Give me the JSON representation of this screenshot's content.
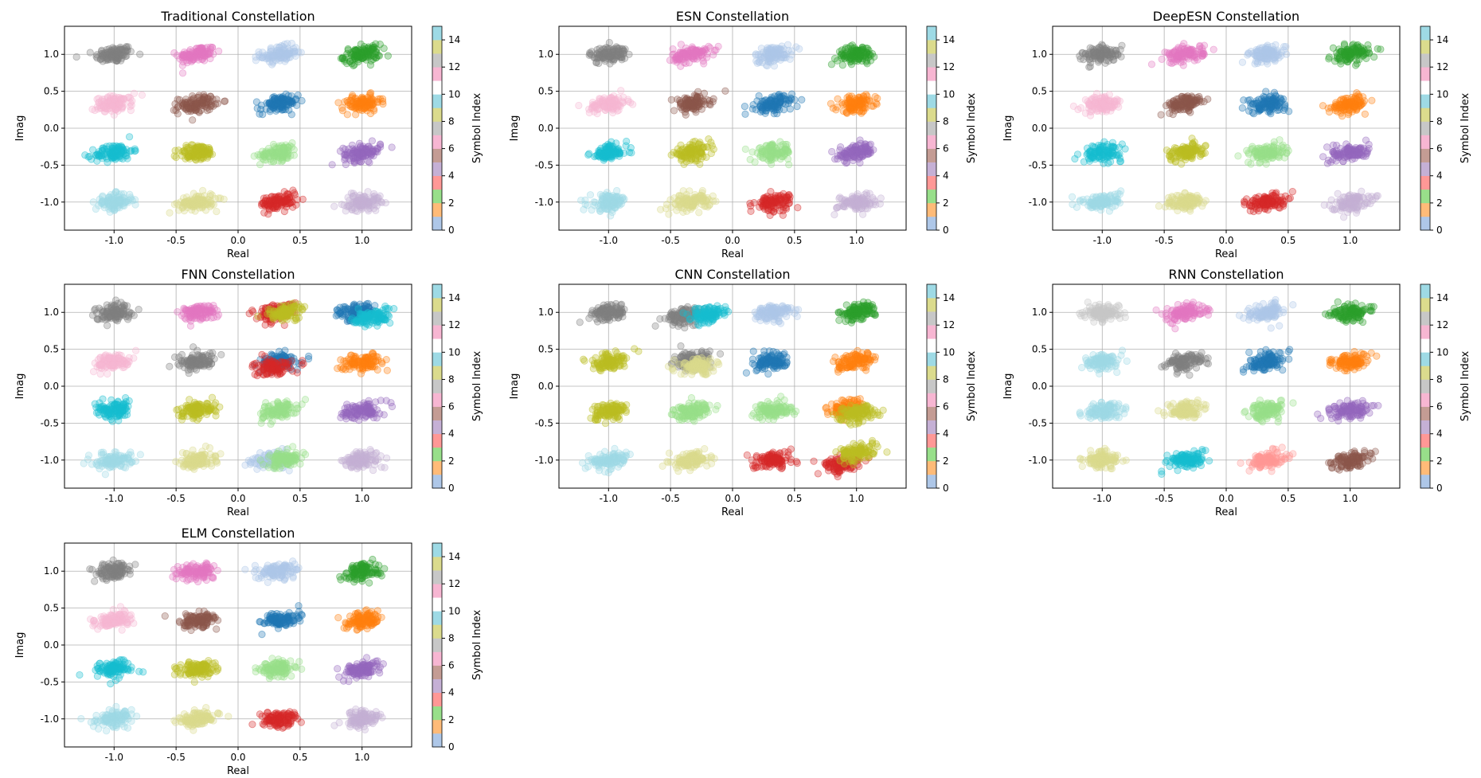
{
  "figure": {
    "colorbar_label": "Symbol Index",
    "colorbar_ticks": [
      "0",
      "2",
      "4",
      "6",
      "8",
      "10",
      "12",
      "14"
    ],
    "colorbar_colors": [
      "#aec7e8",
      "#ffbb78",
      "#98df8a",
      "#ff9896",
      "#c5b0d5",
      "#c49c94",
      "#f7b6d2",
      "#c7c7c7",
      "#dbdb8d",
      "#9edae5",
      "#ffffff",
      "#f7b6d2",
      "#c7c7c7",
      "#dbdb8d",
      "#9edae5"
    ]
  },
  "chart_data": [
    {
      "type": "scatter",
      "title": "Traditional Constellation",
      "xlabel": "Real",
      "ylabel": "Imag",
      "xlim": [
        -1.4,
        1.4
      ],
      "ylim": [
        -1.38,
        1.38
      ],
      "xticks": [
        "-1.0",
        "-0.5",
        "0.0",
        "0.5",
        "1.0"
      ],
      "yticks": [
        "-1.0",
        "-0.5",
        "0.0",
        "0.5",
        "1.0"
      ],
      "grid": true,
      "clusters": [
        {
          "x": -1.0,
          "y": 1.0,
          "color": "#7f7f7f"
        },
        {
          "x": -0.33,
          "y": 1.0,
          "color": "#e377c2"
        },
        {
          "x": 0.33,
          "y": 1.0,
          "color": "#aec7e8"
        },
        {
          "x": 1.0,
          "y": 1.0,
          "color": "#2ca02c"
        },
        {
          "x": -1.0,
          "y": 0.33,
          "color": "#f7b6d2"
        },
        {
          "x": -0.33,
          "y": 0.33,
          "color": "#8c564b"
        },
        {
          "x": 0.33,
          "y": 0.33,
          "color": "#1f77b4"
        },
        {
          "x": 1.0,
          "y": 0.33,
          "color": "#ff7f0e"
        },
        {
          "x": -1.0,
          "y": -0.33,
          "color": "#17becf"
        },
        {
          "x": -0.33,
          "y": -0.33,
          "color": "#bcbd22"
        },
        {
          "x": 0.33,
          "y": -0.33,
          "color": "#98df8a"
        },
        {
          "x": 1.0,
          "y": -0.33,
          "color": "#9467bd"
        },
        {
          "x": -1.0,
          "y": -1.0,
          "color": "#9edae5"
        },
        {
          "x": -0.33,
          "y": -1.0,
          "color": "#dbdb8d"
        },
        {
          "x": 0.33,
          "y": -1.0,
          "color": "#d62728"
        },
        {
          "x": 1.0,
          "y": -1.0,
          "color": "#c5b0d5"
        }
      ]
    },
    {
      "type": "scatter",
      "title": "ESN Constellation",
      "xlabel": "Real",
      "ylabel": "Imag",
      "xlim": [
        -1.4,
        1.4
      ],
      "ylim": [
        -1.38,
        1.38
      ],
      "xticks": [
        "-1.0",
        "-0.5",
        "0.0",
        "0.5",
        "1.0"
      ],
      "yticks": [
        "-1.0",
        "-0.5",
        "0.0",
        "0.5",
        "1.0"
      ],
      "grid": true,
      "clusters": [
        {
          "x": -1.0,
          "y": 1.0,
          "color": "#7f7f7f"
        },
        {
          "x": -0.33,
          "y": 1.0,
          "color": "#e377c2"
        },
        {
          "x": 0.33,
          "y": 1.0,
          "color": "#aec7e8"
        },
        {
          "x": 1.0,
          "y": 1.0,
          "color": "#2ca02c"
        },
        {
          "x": -1.0,
          "y": 0.33,
          "color": "#f7b6d2"
        },
        {
          "x": -0.33,
          "y": 0.33,
          "color": "#8c564b"
        },
        {
          "x": 0.33,
          "y": 0.33,
          "color": "#1f77b4"
        },
        {
          "x": 1.0,
          "y": 0.33,
          "color": "#ff7f0e"
        },
        {
          "x": -1.0,
          "y": -0.33,
          "color": "#17becf"
        },
        {
          "x": -0.33,
          "y": -0.33,
          "color": "#bcbd22"
        },
        {
          "x": 0.33,
          "y": -0.33,
          "color": "#98df8a"
        },
        {
          "x": 1.0,
          "y": -0.33,
          "color": "#9467bd"
        },
        {
          "x": -1.0,
          "y": -1.0,
          "color": "#9edae5"
        },
        {
          "x": -0.33,
          "y": -1.0,
          "color": "#dbdb8d"
        },
        {
          "x": 0.33,
          "y": -1.0,
          "color": "#d62728"
        },
        {
          "x": 1.0,
          "y": -1.0,
          "color": "#c5b0d5"
        }
      ]
    },
    {
      "type": "scatter",
      "title": "DeepESN Constellation",
      "xlabel": "Real",
      "ylabel": "Imag",
      "xlim": [
        -1.4,
        1.4
      ],
      "ylim": [
        -1.38,
        1.38
      ],
      "xticks": [
        "-1.0",
        "-0.5",
        "0.0",
        "0.5",
        "1.0"
      ],
      "yticks": [
        "-1.0",
        "-0.5",
        "0.0",
        "0.5",
        "1.0"
      ],
      "grid": true,
      "clusters": [
        {
          "x": -1.0,
          "y": 1.0,
          "color": "#7f7f7f"
        },
        {
          "x": -0.33,
          "y": 1.0,
          "color": "#e377c2"
        },
        {
          "x": 0.33,
          "y": 1.0,
          "color": "#aec7e8"
        },
        {
          "x": 1.0,
          "y": 1.0,
          "color": "#2ca02c"
        },
        {
          "x": -1.0,
          "y": 0.33,
          "color": "#f7b6d2"
        },
        {
          "x": -0.33,
          "y": 0.33,
          "color": "#8c564b"
        },
        {
          "x": 0.33,
          "y": 0.33,
          "color": "#1f77b4"
        },
        {
          "x": 1.0,
          "y": 0.33,
          "color": "#ff7f0e"
        },
        {
          "x": -1.0,
          "y": -0.33,
          "color": "#17becf"
        },
        {
          "x": -0.33,
          "y": -0.33,
          "color": "#bcbd22"
        },
        {
          "x": 0.33,
          "y": -0.33,
          "color": "#98df8a"
        },
        {
          "x": 1.0,
          "y": -0.33,
          "color": "#9467bd"
        },
        {
          "x": -1.0,
          "y": -1.0,
          "color": "#9edae5"
        },
        {
          "x": -0.33,
          "y": -1.0,
          "color": "#dbdb8d"
        },
        {
          "x": 0.33,
          "y": -1.0,
          "color": "#d62728"
        },
        {
          "x": 1.0,
          "y": -1.0,
          "color": "#c5b0d5"
        }
      ]
    },
    {
      "type": "scatter",
      "title": "FNN Constellation",
      "xlabel": "Real",
      "ylabel": "Imag",
      "xlim": [
        -1.4,
        1.4
      ],
      "ylim": [
        -1.38,
        1.38
      ],
      "xticks": [
        "-1.0",
        "-0.5",
        "0.0",
        "0.5",
        "1.0"
      ],
      "yticks": [
        "-1.0",
        "-0.5",
        "0.0",
        "0.5",
        "1.0"
      ],
      "grid": true,
      "clusters": [
        {
          "x": -1.0,
          "y": 1.0,
          "color": "#7f7f7f"
        },
        {
          "x": -0.33,
          "y": 1.0,
          "color": "#e377c2"
        },
        {
          "x": 0.3,
          "y": 1.0,
          "color": "#d62728"
        },
        {
          "x": 0.38,
          "y": 1.0,
          "color": "#bcbd22"
        },
        {
          "x": 0.95,
          "y": 1.0,
          "color": "#1f77b4"
        },
        {
          "x": 1.08,
          "y": 0.93,
          "color": "#17becf"
        },
        {
          "x": -1.0,
          "y": 0.33,
          "color": "#f7b6d2"
        },
        {
          "x": -0.33,
          "y": 0.33,
          "color": "#7f7f7f"
        },
        {
          "x": 0.33,
          "y": 0.33,
          "color": "#1f77b4"
        },
        {
          "x": 0.28,
          "y": 0.26,
          "color": "#d62728"
        },
        {
          "x": 1.0,
          "y": 0.33,
          "color": "#ff7f0e"
        },
        {
          "x": -1.0,
          "y": -0.33,
          "color": "#17becf"
        },
        {
          "x": -0.33,
          "y": -0.33,
          "color": "#bcbd22"
        },
        {
          "x": 0.33,
          "y": -0.33,
          "color": "#98df8a"
        },
        {
          "x": 1.0,
          "y": -0.33,
          "color": "#9467bd"
        },
        {
          "x": -1.0,
          "y": -1.0,
          "color": "#9edae5"
        },
        {
          "x": -0.33,
          "y": -1.0,
          "color": "#dbdb8d"
        },
        {
          "x": 0.27,
          "y": -1.0,
          "color": "#aec7e8"
        },
        {
          "x": 0.38,
          "y": -0.98,
          "color": "#98df8a"
        },
        {
          "x": 1.0,
          "y": -1.0,
          "color": "#c5b0d5"
        }
      ]
    },
    {
      "type": "scatter",
      "title": "CNN Constellation",
      "xlabel": "Real",
      "ylabel": "Imag",
      "xlim": [
        -1.4,
        1.4
      ],
      "ylim": [
        -1.38,
        1.38
      ],
      "xticks": [
        "-1.0",
        "-0.5",
        "0.0",
        "0.5",
        "1.0"
      ],
      "yticks": [
        "-1.0",
        "-0.5",
        "0.0",
        "0.5",
        "1.0"
      ],
      "grid": true,
      "clusters": [
        {
          "x": -1.0,
          "y": 1.0,
          "color": "#7f7f7f"
        },
        {
          "x": -0.38,
          "y": 0.95,
          "color": "#7f7f7f"
        },
        {
          "x": -0.2,
          "y": 0.97,
          "color": "#17becf"
        },
        {
          "x": 0.33,
          "y": 1.0,
          "color": "#aec7e8"
        },
        {
          "x": 1.0,
          "y": 1.0,
          "color": "#2ca02c"
        },
        {
          "x": -1.0,
          "y": 0.33,
          "color": "#bcbd22"
        },
        {
          "x": -0.33,
          "y": 0.35,
          "color": "#7f7f7f"
        },
        {
          "x": -0.28,
          "y": 0.26,
          "color": "#dbdb8d"
        },
        {
          "x": 0.33,
          "y": 0.33,
          "color": "#1f77b4"
        },
        {
          "x": 1.0,
          "y": 0.33,
          "color": "#ff7f0e"
        },
        {
          "x": -1.0,
          "y": -0.33,
          "color": "#bcbd22"
        },
        {
          "x": -0.33,
          "y": -0.33,
          "color": "#98df8a"
        },
        {
          "x": 0.33,
          "y": -0.33,
          "color": "#98df8a"
        },
        {
          "x": 0.92,
          "y": -0.3,
          "color": "#ff7f0e"
        },
        {
          "x": 1.0,
          "y": -0.38,
          "color": "#bcbd22"
        },
        {
          "x": -1.0,
          "y": -1.0,
          "color": "#9edae5"
        },
        {
          "x": -0.33,
          "y": -1.0,
          "color": "#dbdb8d"
        },
        {
          "x": 0.33,
          "y": -1.0,
          "color": "#d62728"
        },
        {
          "x": 0.88,
          "y": -1.05,
          "color": "#d62728"
        },
        {
          "x": 1.02,
          "y": -0.9,
          "color": "#bcbd22"
        }
      ]
    },
    {
      "type": "scatter",
      "title": "RNN Constellation",
      "xlabel": "Real",
      "ylabel": "Imag",
      "xlim": [
        -1.4,
        1.4
      ],
      "ylim": [
        -1.38,
        1.38
      ],
      "xticks": [
        "-1.0",
        "-0.5",
        "0.0",
        "0.5",
        "1.0"
      ],
      "yticks": [
        "-1.0",
        "-0.5",
        "0.0",
        "0.5",
        "1.0"
      ],
      "grid": true,
      "clusters": [
        {
          "x": -1.0,
          "y": 1.0,
          "color": "#c7c7c7"
        },
        {
          "x": -0.33,
          "y": 1.0,
          "color": "#e377c2"
        },
        {
          "x": 0.33,
          "y": 1.0,
          "color": "#aec7e8"
        },
        {
          "x": 1.0,
          "y": 1.0,
          "color": "#2ca02c"
        },
        {
          "x": -1.0,
          "y": 0.33,
          "color": "#9edae5"
        },
        {
          "x": -0.33,
          "y": 0.33,
          "color": "#7f7f7f"
        },
        {
          "x": 0.33,
          "y": 0.33,
          "color": "#1f77b4"
        },
        {
          "x": 1.0,
          "y": 0.33,
          "color": "#ff7f0e"
        },
        {
          "x": -1.0,
          "y": -0.33,
          "color": "#9edae5"
        },
        {
          "x": -0.33,
          "y": -0.33,
          "color": "#dbdb8d"
        },
        {
          "x": 0.33,
          "y": -0.33,
          "color": "#98df8a"
        },
        {
          "x": 1.0,
          "y": -0.33,
          "color": "#9467bd"
        },
        {
          "x": -1.0,
          "y": -1.0,
          "color": "#dbdb8d"
        },
        {
          "x": -0.33,
          "y": -1.0,
          "color": "#17becf"
        },
        {
          "x": 0.33,
          "y": -1.0,
          "color": "#ff9896"
        },
        {
          "x": 1.0,
          "y": -1.0,
          "color": "#8c564b"
        }
      ]
    },
    {
      "type": "scatter",
      "title": "ELM Constellation",
      "xlabel": "Real",
      "ylabel": "Imag",
      "xlim": [
        -1.4,
        1.4
      ],
      "ylim": [
        -1.38,
        1.38
      ],
      "xticks": [
        "-1.0",
        "-0.5",
        "0.0",
        "0.5",
        "1.0"
      ],
      "yticks": [
        "-1.0",
        "-0.5",
        "0.0",
        "0.5",
        "1.0"
      ],
      "grid": true,
      "clusters": [
        {
          "x": -1.0,
          "y": 1.0,
          "color": "#7f7f7f"
        },
        {
          "x": -0.33,
          "y": 1.0,
          "color": "#e377c2"
        },
        {
          "x": 0.33,
          "y": 1.0,
          "color": "#aec7e8"
        },
        {
          "x": 1.0,
          "y": 1.0,
          "color": "#2ca02c"
        },
        {
          "x": -1.0,
          "y": 0.33,
          "color": "#f7b6d2"
        },
        {
          "x": -0.33,
          "y": 0.33,
          "color": "#8c564b"
        },
        {
          "x": 0.33,
          "y": 0.33,
          "color": "#1f77b4"
        },
        {
          "x": 1.0,
          "y": 0.33,
          "color": "#ff7f0e"
        },
        {
          "x": -1.0,
          "y": -0.33,
          "color": "#17becf"
        },
        {
          "x": -0.33,
          "y": -0.33,
          "color": "#bcbd22"
        },
        {
          "x": 0.33,
          "y": -0.33,
          "color": "#98df8a"
        },
        {
          "x": 1.0,
          "y": -0.33,
          "color": "#9467bd"
        },
        {
          "x": -1.0,
          "y": -1.0,
          "color": "#9edae5"
        },
        {
          "x": -0.33,
          "y": -1.0,
          "color": "#dbdb8d"
        },
        {
          "x": 0.33,
          "y": -1.0,
          "color": "#d62728"
        },
        {
          "x": 1.0,
          "y": -1.0,
          "color": "#c5b0d5"
        }
      ]
    }
  ]
}
